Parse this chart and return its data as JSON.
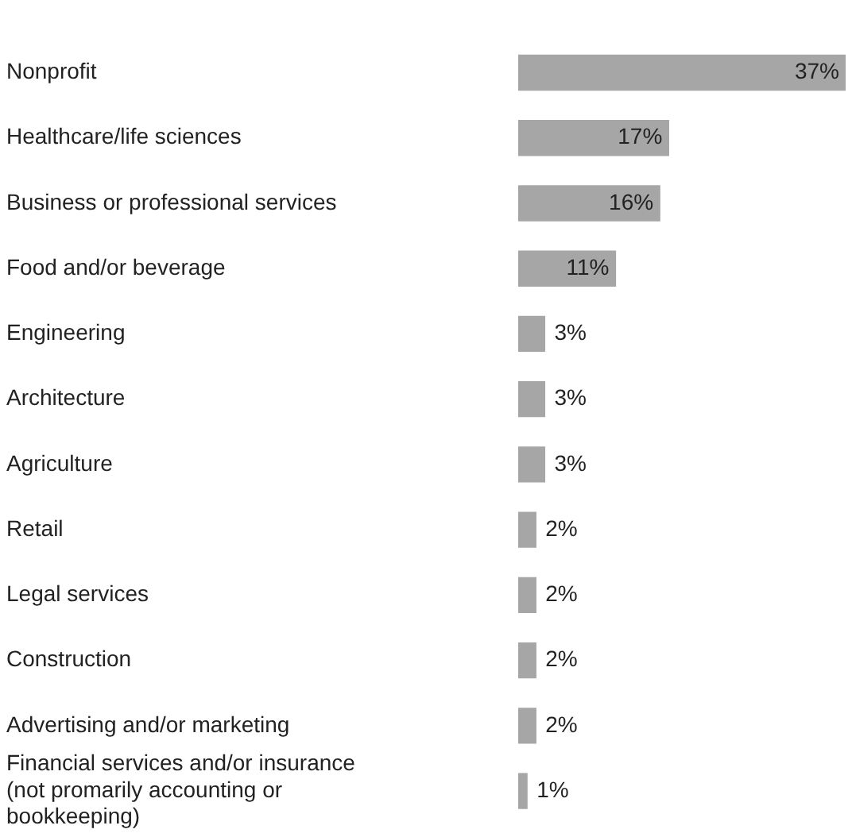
{
  "chart_data": {
    "type": "bar",
    "orientation": "horizontal",
    "categories": [
      "Nonprofit",
      "Healthcare/life sciences",
      "Business or professional services",
      "Food and/or beverage",
      "Engineering",
      "Architecture",
      "Agriculture",
      "Retail",
      "Legal services",
      "Construction",
      "Advertising and/or marketing",
      "Financial services and/or insurance (not promarily accounting or bookkeeping)"
    ],
    "values": [
      37,
      17,
      16,
      11,
      3,
      3,
      3,
      2,
      2,
      2,
      2,
      1
    ],
    "value_labels": [
      "37%",
      "17%",
      "16%",
      "11%",
      "3%",
      "3%",
      "3%",
      "2%",
      "2%",
      "2%",
      "2%",
      "1%"
    ],
    "color": "#a6a6a6",
    "tick_labels": "y"
  }
}
